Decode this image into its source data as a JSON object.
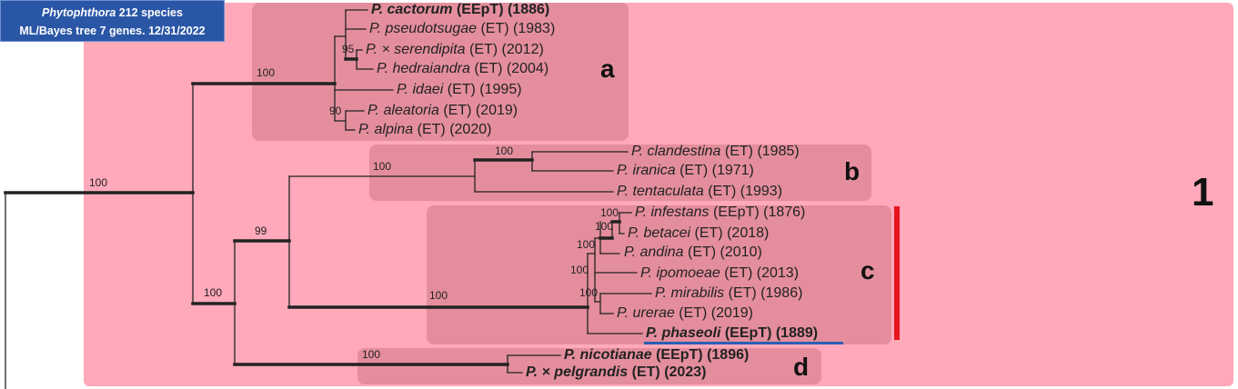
{
  "title_badge": {
    "genus": "Phytophthora",
    "line1_suffix": " 212 species",
    "line2": "ML/Bayes tree 7 genes. 12/31/2022"
  },
  "group_number": "1",
  "clade_letters": {
    "a": "a",
    "b": "b",
    "c": "c",
    "d": "d"
  },
  "taxa": [
    {
      "name": "P. cactorum",
      "status": " (EEpT) (1886)",
      "bold": true
    },
    {
      "name": "P. pseudotsugae",
      "status": " (ET) (1983)",
      "bold": false
    },
    {
      "name": "P. × serendipita",
      "status": " (ET) (2012)",
      "bold": false
    },
    {
      "name": "P. hedraiandra",
      "status": " (ET) (2004)",
      "bold": false
    },
    {
      "name": "P. idaei",
      "status": " (ET) (1995)",
      "bold": false
    },
    {
      "name": "P. aleatoria",
      "status": " (ET) (2019)",
      "bold": false
    },
    {
      "name": "P. alpina",
      "status": " (ET) (2020)",
      "bold": false
    },
    {
      "name": "P. clandestina",
      "status": " (ET) (1985)",
      "bold": false
    },
    {
      "name": "P. iranica",
      "status": " (ET) (1971)",
      "bold": false
    },
    {
      "name": "P. tentaculata",
      "status": " (ET) (1993)",
      "bold": false
    },
    {
      "name": "P. infestans",
      "status": " (EEpT) (1876)",
      "bold": false
    },
    {
      "name": "P. betacei",
      "status": " (ET) (2018)",
      "bold": false
    },
    {
      "name": "P. andina",
      "status": " (ET) (2010)",
      "bold": false
    },
    {
      "name": "P. ipomoeae",
      "status": " (ET) (2013)",
      "bold": false
    },
    {
      "name": "P. mirabilis",
      "status": " (ET) (1986)",
      "bold": false
    },
    {
      "name": "P. urerae",
      "status": " (ET) (2019)",
      "bold": false
    },
    {
      "name": "P. phaseoli",
      "status": " (EEpT) (1889)",
      "bold": true
    },
    {
      "name": "P. nicotianae",
      "status": " (EEpT) (1896)",
      "bold": true
    },
    {
      "name": "P. × pelgrandis",
      "status": " (ET) (2023)",
      "bold": true
    }
  ],
  "support_values": {
    "root": "100",
    "clade_a": "100",
    "serendipita_hedraiandra": "95",
    "aleatoria_alpina": "90",
    "clade_bc": "100",
    "bc_split": "99",
    "clade_b": "100",
    "clandestina_iranica": "100",
    "clade_c": "100",
    "c_inner1": "100",
    "c_inner2": "100",
    "c_inner3": "100",
    "c_inner4": "100",
    "mirabilis_urerae": "100",
    "clade_d": "100"
  },
  "colors": {
    "group_background": "#ffa9ba",
    "clade_box": "#e48e9d",
    "title_badge": "#2a56a6",
    "highlight_bar": "#e8141c",
    "underline": "#2b5fb3"
  }
}
